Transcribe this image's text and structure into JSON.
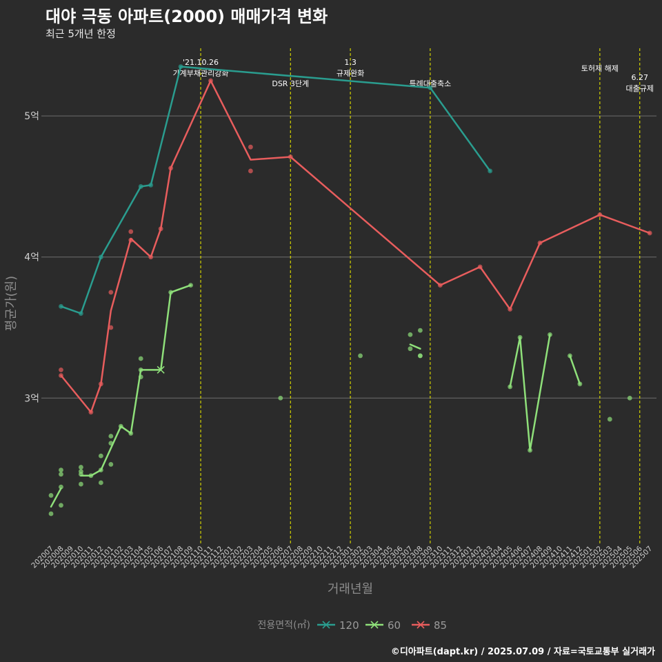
{
  "chart_data": {
    "type": "line",
    "title": "대야 극동 아파트(2000) 매매가격 변화",
    "subtitle": "최근 5개년 한정",
    "caption": "©디아파트(dapt.kr) / 2025.07.09 / 자료=국토교통부 실거래가",
    "xlabel": "거래년월",
    "ylabel": "평균가(원)",
    "yticks": [
      {
        "value": 3.0,
        "label": "3억"
      },
      {
        "value": 4.0,
        "label": "4억"
      },
      {
        "value": 5.0,
        "label": "5억"
      }
    ],
    "ylim": [
      1.96,
      5.48
    ],
    "categories": [
      "202007",
      "202008",
      "202009",
      "202010",
      "202011",
      "202012",
      "202101",
      "202102",
      "202103",
      "202104",
      "202105",
      "202106",
      "202107",
      "202108",
      "202109",
      "202110",
      "202111",
      "202112",
      "202201",
      "202202",
      "202203",
      "202204",
      "202205",
      "202206",
      "202207",
      "202208",
      "202209",
      "202210",
      "202211",
      "202212",
      "202301",
      "202302",
      "202303",
      "202304",
      "202305",
      "202306",
      "202307",
      "202308",
      "202309",
      "202310",
      "202311",
      "202312",
      "202401",
      "202402",
      "202403",
      "202404",
      "202405",
      "202406",
      "202407",
      "202408",
      "202409",
      "202410",
      "202411",
      "202412",
      "202501",
      "202502",
      "202503",
      "202504",
      "202505",
      "202506",
      "202507"
    ],
    "legend": {
      "title": "전용면적(㎡)",
      "position": "bottom"
    },
    "series": [
      {
        "name": "120",
        "color": "#2a9d8f",
        "line": [
          [
            "202008",
            3.65
          ],
          [
            "202010",
            3.6
          ],
          [
            "202012",
            4.0
          ],
          [
            "202104",
            4.5
          ],
          [
            "202105",
            4.51
          ],
          [
            "202108",
            5.35
          ],
          [
            "202309",
            5.2
          ],
          [
            "202403",
            4.61
          ]
        ],
        "points": [
          [
            "202008",
            3.65
          ],
          [
            "202010",
            3.6
          ],
          [
            "202012",
            4.0
          ],
          [
            "202104",
            4.5
          ],
          [
            "202105",
            4.51
          ],
          [
            "202108",
            5.35
          ],
          [
            "202309",
            5.2
          ],
          [
            "202403",
            4.61
          ]
        ]
      },
      {
        "name": "60",
        "color": "#8fe07a",
        "line_segments": [
          [
            [
              "202007",
              2.23
            ],
            [
              "202008",
              2.36
            ]
          ],
          [
            [
              "202010",
              2.45
            ],
            [
              "202011",
              2.45
            ],
            [
              "202012",
              2.49
            ],
            [
              "202102",
              2.8
            ],
            [
              "202103",
              2.75
            ],
            [
              "202104",
              3.2
            ],
            [
              "202106",
              3.2
            ],
            [
              "202107",
              3.75
            ],
            [
              "202109",
              3.8
            ]
          ],
          [
            [
              "202307",
              3.38
            ],
            [
              "202308",
              3.35
            ]
          ],
          [
            [
              "202405",
              3.08
            ],
            [
              "202406",
              3.43
            ],
            [
              "202407",
              2.63
            ],
            [
              "202409",
              3.45
            ]
          ],
          [
            [
              "202411",
              3.3
            ],
            [
              "202412",
              3.1
            ]
          ]
        ],
        "points": [
          [
            "202007",
            2.31
          ],
          [
            "202007",
            2.18
          ],
          [
            "202008",
            2.49
          ],
          [
            "202008",
            2.46
          ],
          [
            "202008",
            2.37
          ],
          [
            "202008",
            2.24
          ],
          [
            "202010",
            2.51
          ],
          [
            "202010",
            2.48
          ],
          [
            "202010",
            2.46
          ],
          [
            "202010",
            2.39
          ],
          [
            "202011",
            2.45
          ],
          [
            "202012",
            2.59
          ],
          [
            "202012",
            2.49
          ],
          [
            "202012",
            2.4
          ],
          [
            "202101",
            2.73
          ],
          [
            "202101",
            2.68
          ],
          [
            "202101",
            2.53
          ],
          [
            "202102",
            2.8
          ],
          [
            "202103",
            2.75
          ],
          [
            "202104",
            3.28
          ],
          [
            "202104",
            3.2
          ],
          [
            "202104",
            3.15
          ],
          [
            "202107",
            3.75
          ],
          [
            "202109",
            3.8
          ],
          [
            "202206",
            3.0
          ],
          [
            "202302",
            3.3
          ],
          [
            "202307",
            3.45
          ],
          [
            "202307",
            3.35
          ],
          [
            "202308",
            3.48
          ],
          [
            "202308",
            3.3
          ],
          [
            "202308",
            3.3
          ],
          [
            "202405",
            3.08
          ],
          [
            "202406",
            3.43
          ],
          [
            "202407",
            2.63
          ],
          [
            "202409",
            3.45
          ],
          [
            "202411",
            3.3
          ],
          [
            "202412",
            3.1
          ],
          [
            "202503",
            2.85
          ],
          [
            "202505",
            3.0
          ]
        ]
      },
      {
        "name": "85",
        "color": "#e85d5d",
        "line": [
          [
            "202008",
            3.16
          ],
          [
            "202011",
            2.9
          ],
          [
            "202012",
            3.1
          ],
          [
            "202101",
            3.62
          ],
          [
            "202103",
            4.13
          ],
          [
            "202105",
            4.0
          ],
          [
            "202106",
            4.2
          ],
          [
            "202107",
            4.63
          ],
          [
            "202111",
            5.25
          ],
          [
            "202203",
            4.69
          ],
          [
            "202207",
            4.71
          ],
          [
            "202310",
            3.8
          ],
          [
            "202402",
            3.93
          ],
          [
            "202405",
            3.63
          ],
          [
            "202408",
            4.1
          ],
          [
            "202502",
            4.3
          ],
          [
            "202507",
            4.17
          ]
        ],
        "points": [
          [
            "202008",
            3.2
          ],
          [
            "202008",
            3.16
          ],
          [
            "202011",
            2.9
          ],
          [
            "202012",
            3.1
          ],
          [
            "202101",
            3.75
          ],
          [
            "202101",
            3.5
          ],
          [
            "202103",
            4.18
          ],
          [
            "202103",
            4.12
          ],
          [
            "202105",
            4.0
          ],
          [
            "202106",
            4.2
          ],
          [
            "202107",
            4.63
          ],
          [
            "202111",
            5.25
          ],
          [
            "202203",
            4.78
          ],
          [
            "202203",
            4.61
          ],
          [
            "202207",
            4.71
          ],
          [
            "202310",
            3.8
          ],
          [
            "202402",
            3.93
          ],
          [
            "202405",
            3.63
          ],
          [
            "202408",
            4.1
          ],
          [
            "202502",
            4.3
          ],
          [
            "202507",
            4.17
          ]
        ]
      }
    ],
    "events": [
      {
        "month": "202110",
        "label_lines": [
          "'21.10.26",
          "가계부채관리강화"
        ],
        "level": "high"
      },
      {
        "month": "202207",
        "label_lines": [
          "DSR 3단계"
        ],
        "level": "low"
      },
      {
        "month": "202301",
        "label_lines": [
          "1.3",
          "규제완화"
        ],
        "level": "high"
      },
      {
        "month": "202309",
        "label_lines": [
          "특례대출축소"
        ],
        "level": "low"
      },
      {
        "month": "202502",
        "label_lines": [
          "토허제 해제"
        ],
        "level": "mid"
      },
      {
        "month": "202506",
        "label_lines": [
          "6.27",
          "대출규제"
        ],
        "level": "low"
      }
    ]
  }
}
